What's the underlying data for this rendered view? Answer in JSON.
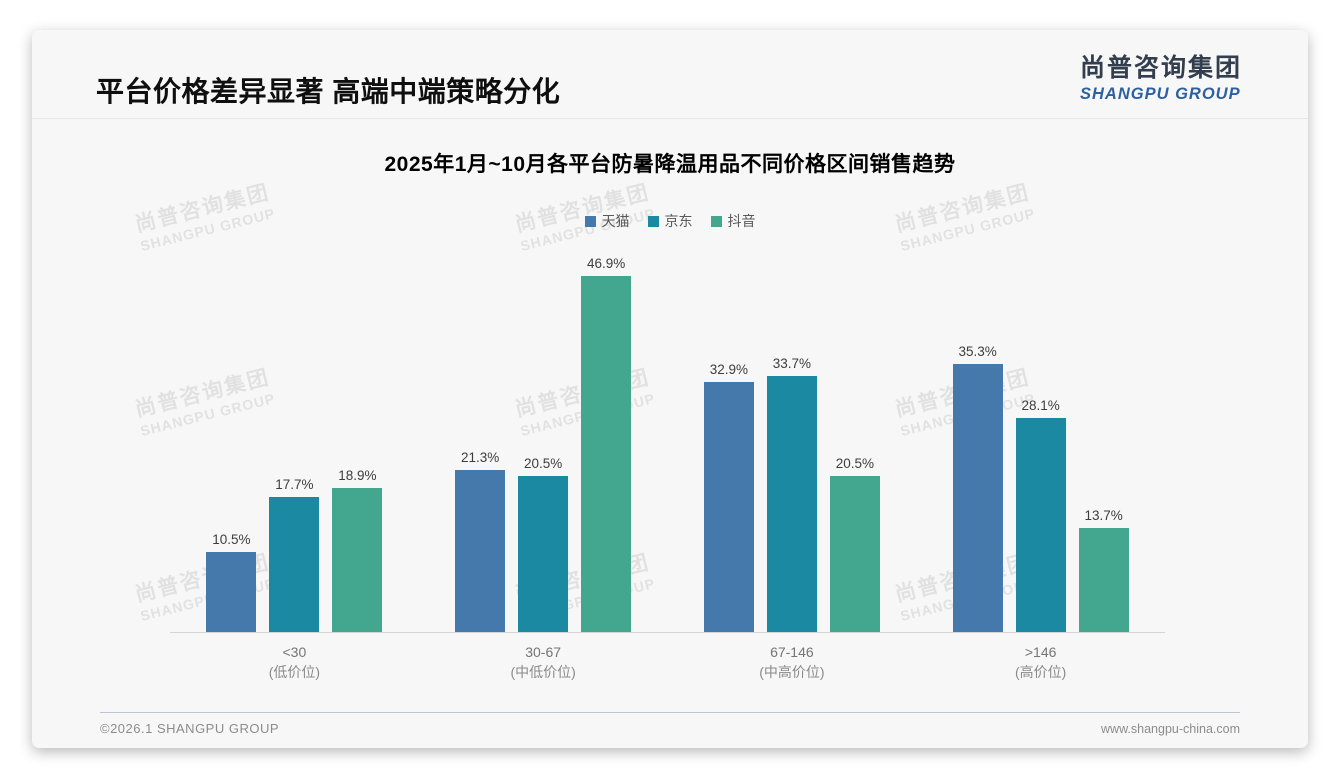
{
  "page": {
    "title": "平台价格差异显著 高端中端策略分化",
    "logo": {
      "cn": "尚普咨询集团",
      "en": "SHANGPU GROUP"
    },
    "watermark": {
      "cn": "尚普咨询集团",
      "en": "SHANGPU GROUP"
    },
    "footer": {
      "left": "©2026.1 SHANGPU GROUP",
      "right": "www.shangpu-china.com"
    }
  },
  "chart_data": {
    "type": "bar",
    "title": "2025年1月~10月各平台防暑降温用品不同价格区间销售趋势",
    "categories": [
      "<30",
      "30-67",
      "67-146",
      ">146"
    ],
    "category_sublabels": [
      "(低价位)",
      "(中低价位)",
      "(中高价位)",
      "(高价位)"
    ],
    "series": [
      {
        "name": "天猫",
        "color": "#4578ab",
        "values": [
          10.5,
          21.3,
          32.9,
          35.3
        ]
      },
      {
        "name": "京东",
        "color": "#1b89a2",
        "values": [
          17.7,
          20.5,
          33.7,
          28.1
        ]
      },
      {
        "name": "抖音",
        "color": "#43a78f",
        "values": [
          18.9,
          46.9,
          20.5,
          13.7
        ]
      }
    ],
    "value_suffix": "%",
    "ylabel": "",
    "xlabel": "",
    "ylim": [
      0,
      50
    ],
    "grid": false,
    "legend_position": "top"
  },
  "colors": {
    "card_bg": "#f7f7f7",
    "axis_line": "#d5d5d5",
    "value_label": "#3d3d3d",
    "logo_cn": "#323e4e",
    "logo_en": "#2d60a0",
    "footer_divider": "#b9c5d1"
  }
}
